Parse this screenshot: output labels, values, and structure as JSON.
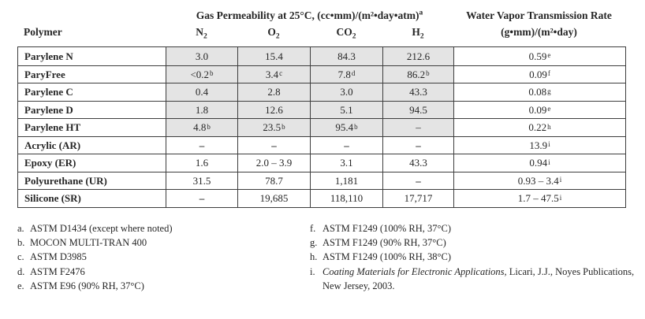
{
  "header": {
    "polymer_label": "Polymer",
    "gas_title": "Gas Permeability at 25°C, (cc•mm)/(m²•day•atm)",
    "gas_title_sup": "a",
    "gas_columns": [
      {
        "label": "N",
        "sub": "2"
      },
      {
        "label": "O",
        "sub": "2"
      },
      {
        "label": "CO",
        "sub": "2"
      },
      {
        "label": "H",
        "sub": "2"
      }
    ],
    "wvtr_line1": "Water Vapor Transmission Rate",
    "wvtr_line2": "(g•mm)/(m²•day)"
  },
  "table": {
    "column_keys": [
      "n2",
      "o2",
      "co2",
      "h2",
      "wvtr"
    ],
    "rows": [
      {
        "polymer": "Parylene N",
        "shaded": true,
        "cells": [
          {
            "t": "3.0"
          },
          {
            "t": "15.4"
          },
          {
            "t": "84.3"
          },
          {
            "t": "212.6"
          },
          {
            "t": "0.59",
            "s": "e"
          }
        ]
      },
      {
        "polymer": "ParyFree",
        "shaded": true,
        "cells": [
          {
            "t": "<0.2",
            "s": "b"
          },
          {
            "t": "3.4",
            "s": "c"
          },
          {
            "t": "7.8",
            "s": "d"
          },
          {
            "t": "86.2",
            "s": "b"
          },
          {
            "t": "0.09",
            "s": "f"
          }
        ]
      },
      {
        "polymer": "Parylene C",
        "shaded": true,
        "cells": [
          {
            "t": "0.4"
          },
          {
            "t": "2.8"
          },
          {
            "t": "3.0"
          },
          {
            "t": "43.3"
          },
          {
            "t": "0.08",
            "s": "g"
          }
        ]
      },
      {
        "polymer": "Parylene D",
        "shaded": true,
        "cells": [
          {
            "t": "1.8"
          },
          {
            "t": "12.6"
          },
          {
            "t": "5.1"
          },
          {
            "t": "94.5"
          },
          {
            "t": "0.09",
            "s": "e"
          }
        ]
      },
      {
        "polymer": "Parylene HT",
        "shaded": true,
        "cells": [
          {
            "t": "4.8",
            "s": "b"
          },
          {
            "t": "23.5",
            "s": "b"
          },
          {
            "t": "95.4",
            "s": "b"
          },
          {
            "t": "–"
          },
          {
            "t": "0.22",
            "s": "h"
          }
        ]
      },
      {
        "polymer": "Acrylic (AR)",
        "shaded": false,
        "cells": [
          {
            "t": "–",
            "dash": true
          },
          {
            "t": "–",
            "dash": true
          },
          {
            "t": "–",
            "dash": true
          },
          {
            "t": "–",
            "dash": true
          },
          {
            "t": "13.9",
            "s": "i"
          }
        ]
      },
      {
        "polymer": "Epoxy (ER)",
        "shaded": false,
        "cells": [
          {
            "t": "1.6"
          },
          {
            "t": "2.0 – 3.9"
          },
          {
            "t": "3.1"
          },
          {
            "t": "43.3"
          },
          {
            "t": "0.94",
            "s": "i"
          }
        ]
      },
      {
        "polymer": "Polyurethane (UR)",
        "shaded": false,
        "cells": [
          {
            "t": "31.5"
          },
          {
            "t": "78.7"
          },
          {
            "t": "1,181"
          },
          {
            "t": "–",
            "dash": true
          },
          {
            "t": "0.93 – 3.4",
            "s": "i"
          }
        ]
      },
      {
        "polymer": "Silicone (SR)",
        "shaded": false,
        "cells": [
          {
            "t": "–",
            "dash": true
          },
          {
            "t": "19,685"
          },
          {
            "t": "118,110"
          },
          {
            "t": "17,717"
          },
          {
            "t": "1.7 – 47.5",
            "s": "i"
          }
        ]
      }
    ]
  },
  "footnotes": {
    "left": [
      {
        "letter": "a.",
        "text": "ASTM D1434 (except where noted)"
      },
      {
        "letter": "b.",
        "text": "MOCON MULTI-TRAN 400"
      },
      {
        "letter": "c.",
        "text": "ASTM D3985"
      },
      {
        "letter": "d.",
        "text": "ASTM F2476"
      },
      {
        "letter": "e.",
        "text": "ASTM E96 (90% RH, 37°C)"
      }
    ],
    "right": [
      {
        "letter": "f.",
        "text": "ASTM F1249 (100% RH, 37°C)"
      },
      {
        "letter": "g.",
        "text": "ASTM F1249 (90% RH, 37°C)"
      },
      {
        "letter": "h.",
        "text": "ASTM F1249 (100% RH, 38°C)"
      },
      {
        "letter": "i.",
        "italic": "Coating Materials for Electronic Applications,",
        "text": " Licari, J.J., Noyes Publications, New Jersey, 2003."
      }
    ]
  },
  "colors": {
    "background": "#ffffff",
    "shaded_cell": "#e4e4e4",
    "border": "#3d3d3d",
    "text": "#262626"
  }
}
